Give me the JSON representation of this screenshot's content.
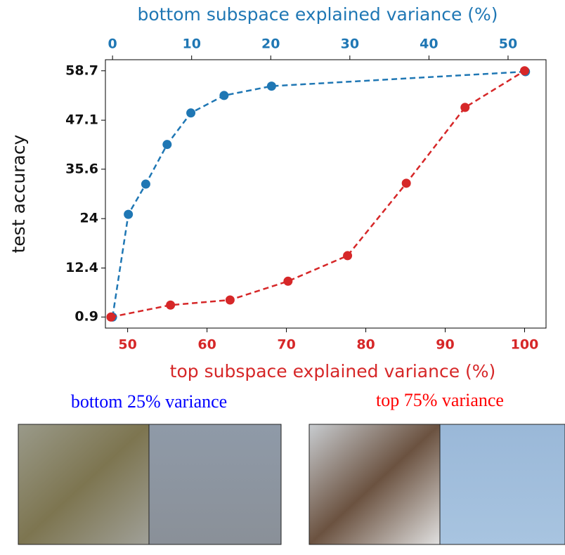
{
  "chart_data": {
    "type": "line",
    "xlabel": "top subspace explained variance (%)",
    "x2label": "bottom subspace explained variance (%)",
    "ylabel": "test accuracy",
    "xlim": [
      47.2,
      102.7
    ],
    "xticks": [
      50,
      60,
      70,
      80,
      90,
      100
    ],
    "x2lim": [
      -0.9,
      54.8
    ],
    "x2ticks": [
      0,
      10,
      20,
      30,
      40,
      50
    ],
    "ylim": [
      -1.7,
      61.3
    ],
    "yticks": [
      0.9,
      12.4,
      24.0,
      35.6,
      47.1,
      58.7
    ],
    "series": [
      {
        "name": "bottom 25% variance",
        "color": "#1f77b4",
        "axis": "x2",
        "x": [
          0,
          2,
          4.2,
          6.9,
          9.9,
          14.1,
          20.1,
          52.2
        ],
        "values": [
          0.9,
          25.0,
          32.1,
          41.4,
          48.8,
          52.9,
          55.1,
          58.5
        ]
      },
      {
        "name": "top 75% variance",
        "color": "#d62728",
        "x": [
          47.9,
          55.4,
          62.9,
          70.2,
          77.7,
          85.1,
          92.5,
          100
        ],
        "values": [
          0.9,
          3.7,
          4.9,
          9.3,
          15.3,
          32.3,
          50.1,
          58.7
        ]
      }
    ]
  }
}
